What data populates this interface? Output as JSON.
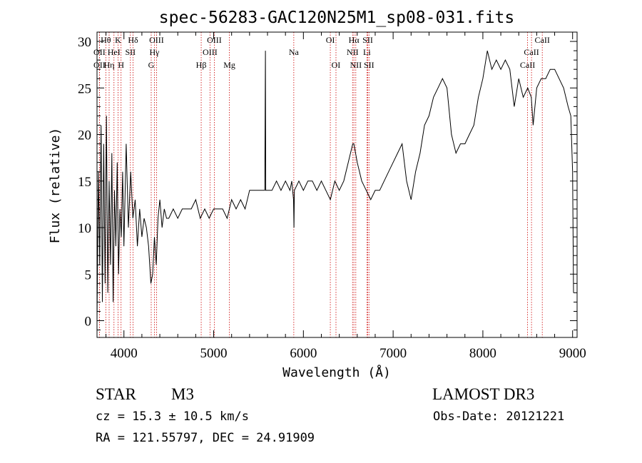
{
  "chart_data": {
    "type": "line",
    "title": "spec-56283-GAC120N25M1_sp08-031.fits",
    "xlabel": "Wavelength (Å)",
    "ylabel": "Flux (relative)",
    "xlim": [
      3700,
      9050
    ],
    "ylim": [
      -1.8,
      31
    ],
    "x_ticks": [
      4000,
      5000,
      6000,
      7000,
      8000,
      9000
    ],
    "x_tick_labels": [
      "4000",
      "5000",
      "6000",
      "7000",
      "8000",
      "9000"
    ],
    "y_ticks": [
      0,
      5,
      10,
      15,
      20,
      25,
      30
    ],
    "y_tick_labels": [
      "0",
      "5",
      "10",
      "15",
      "20",
      "25",
      "30"
    ],
    "line_color": "#000000",
    "marker_color": "#cc0000",
    "series": [
      {
        "name": "spectrum",
        "x": [
          3700,
          3715,
          3730,
          3745,
          3760,
          3775,
          3790,
          3805,
          3820,
          3835,
          3850,
          3865,
          3880,
          3895,
          3910,
          3925,
          3940,
          3955,
          3970,
          3985,
          4000,
          4025,
          4050,
          4075,
          4100,
          4125,
          4150,
          4175,
          4200,
          4225,
          4250,
          4275,
          4300,
          4320,
          4340,
          4360,
          4380,
          4400,
          4425,
          4450,
          4475,
          4500,
          4550,
          4600,
          4650,
          4700,
          4750,
          4800,
          4850,
          4900,
          4950,
          5000,
          5050,
          5100,
          5150,
          5200,
          5250,
          5300,
          5350,
          5400,
          5450,
          5500,
          5550,
          5570,
          5577,
          5580,
          5590,
          5600,
          5650,
          5700,
          5750,
          5800,
          5850,
          5870,
          5890,
          5895,
          5900,
          5950,
          6000,
          6050,
          6100,
          6150,
          6200,
          6250,
          6300,
          6350,
          6400,
          6450,
          6500,
          6550,
          6563,
          6600,
          6650,
          6700,
          6750,
          6800,
          6850,
          6900,
          6950,
          7000,
          7050,
          7100,
          7150,
          7200,
          7250,
          7300,
          7350,
          7400,
          7450,
          7500,
          7550,
          7600,
          7650,
          7700,
          7750,
          7800,
          7850,
          7900,
          7950,
          8000,
          8050,
          8100,
          8150,
          8200,
          8250,
          8300,
          8350,
          8400,
          8450,
          8500,
          8540,
          8560,
          8600,
          8650,
          8700,
          8750,
          8800,
          8850,
          8900,
          8950,
          8980,
          9000,
          9010
        ],
        "y": [
          0,
          16,
          6,
          21,
          2,
          19,
          4,
          22,
          3,
          15,
          6,
          18,
          2,
          14,
          8,
          17,
          5,
          12,
          9,
          16,
          8,
          19,
          10,
          16,
          11,
          13,
          8,
          12,
          9,
          11,
          10,
          8,
          4,
          5,
          9,
          6,
          11,
          13,
          10,
          12,
          11,
          11,
          12,
          11,
          12,
          12,
          12,
          13,
          11,
          12,
          11,
          12,
          12,
          12,
          11,
          13,
          12,
          13,
          12,
          14,
          14,
          14,
          14,
          14,
          29,
          14,
          14,
          14,
          14,
          15,
          14,
          15,
          14,
          15,
          13,
          10,
          14,
          15,
          14,
          15,
          15,
          14,
          15,
          14,
          13,
          15,
          14,
          15,
          17,
          19,
          19,
          17,
          15,
          14,
          13,
          14,
          14,
          15,
          16,
          17,
          18,
          19,
          15,
          13,
          16,
          18,
          21,
          22,
          24,
          25,
          26,
          25,
          20,
          18,
          19,
          19,
          20,
          21,
          24,
          26,
          29,
          27,
          28,
          27,
          28,
          27,
          23,
          26,
          24,
          25,
          24,
          21,
          25,
          26,
          26,
          27,
          27,
          26,
          25,
          23,
          22,
          16,
          3
        ]
      }
    ],
    "spectral_lines": [
      {
        "label": "Hθ",
        "wavelength": 3798,
        "row": 0
      },
      {
        "label": "K",
        "wavelength": 3934,
        "row": 0
      },
      {
        "label": "Hδ",
        "wavelength": 4102,
        "row": 0
      },
      {
        "label": "OIII",
        "wavelength": 4363,
        "row": 0
      },
      {
        "label": "OIII",
        "wavelength": 5007,
        "row": 0
      },
      {
        "label": "OI",
        "wavelength": 6300,
        "row": 0
      },
      {
        "label": "Hα",
        "wavelength": 6563,
        "row": 0
      },
      {
        "label": "SII",
        "wavelength": 6717,
        "row": 0
      },
      {
        "label": "CaII",
        "wavelength": 8662,
        "row": 0
      },
      {
        "label": "OII",
        "wavelength": 3727,
        "row": 1
      },
      {
        "label": "HeI",
        "wavelength": 3889,
        "row": 1
      },
      {
        "label": "SII",
        "wavelength": 4072,
        "row": 1
      },
      {
        "label": "Hγ",
        "wavelength": 4340,
        "row": 1
      },
      {
        "label": "OIII",
        "wavelength": 4959,
        "row": 1
      },
      {
        "label": "Na",
        "wavelength": 5893,
        "row": 1
      },
      {
        "label": "NII",
        "wavelength": 6548,
        "row": 1
      },
      {
        "label": "Li",
        "wavelength": 6708,
        "row": 1
      },
      {
        "label": "CaII",
        "wavelength": 8542,
        "row": 1
      },
      {
        "label": "OII",
        "wavelength": 3727,
        "row": 2
      },
      {
        "label": "Hη",
        "wavelength": 3835,
        "row": 2
      },
      {
        "label": "H",
        "wavelength": 3968,
        "row": 2
      },
      {
        "label": "G",
        "wavelength": 4304,
        "row": 2
      },
      {
        "label": "Hβ",
        "wavelength": 4861,
        "row": 2
      },
      {
        "label": "Mg",
        "wavelength": 5175,
        "row": 2
      },
      {
        "label": "OI",
        "wavelength": 6363,
        "row": 2
      },
      {
        "label": "NII",
        "wavelength": 6584,
        "row": 2
      },
      {
        "label": "SII",
        "wavelength": 6731,
        "row": 2
      },
      {
        "label": "CaII",
        "wavelength": 8498,
        "row": 2
      }
    ]
  },
  "info": {
    "object_class": "STAR",
    "subclass": "M3",
    "survey": "LAMOST DR3",
    "velocity": "cz = 15.3 ± 10.5 km/s",
    "obs_date": "Obs-Date: 20121221",
    "coords": "RA = 121.55797, DEC =  24.91909"
  }
}
